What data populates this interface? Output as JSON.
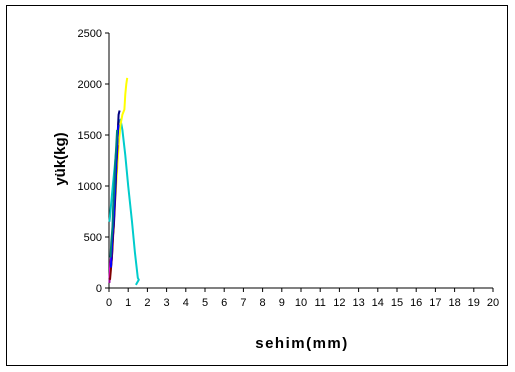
{
  "chart_data": {
    "type": "line",
    "title": "",
    "xlabel": "sehim(mm)",
    "ylabel": "yük(kg)",
    "xlim": [
      0,
      20
    ],
    "ylim": [
      0,
      2500
    ],
    "xticks": [
      "0",
      "1",
      "2",
      "3",
      "4",
      "5",
      "6",
      "7",
      "8",
      "9",
      "10",
      "11",
      "12",
      "13",
      "14",
      "15",
      "16",
      "17",
      "18",
      "19",
      "20"
    ],
    "yticks": [
      "0",
      "500",
      "1000",
      "1500",
      "2000",
      "2500"
    ],
    "grid": false,
    "legend": "none",
    "series": [
      {
        "color": "#00cccc",
        "x": [
          0.02,
          0.05,
          0.1,
          0.2,
          0.3,
          0.4,
          0.5,
          0.6,
          0.7,
          0.85,
          1.0,
          1.2,
          1.35,
          1.5,
          1.55,
          1.4
        ],
        "y": [
          650,
          700,
          800,
          1000,
          1200,
          1400,
          1620,
          1650,
          1550,
          1300,
          1000,
          650,
          350,
          100,
          80,
          30
        ]
      },
      {
        "color": "#ffff00",
        "x": [
          0.1,
          0.2,
          0.3,
          0.4,
          0.5,
          0.6,
          0.7,
          0.8,
          0.85,
          0.9,
          0.95
        ],
        "y": [
          200,
          500,
          800,
          1100,
          1400,
          1600,
          1700,
          1750,
          1900,
          2000,
          2060
        ]
      },
      {
        "color": "#990099",
        "x": [
          0.02,
          0.05,
          0.1,
          0.15,
          0.2,
          0.25,
          0.3,
          0.35,
          0.4,
          0.45,
          0.5
        ],
        "y": [
          50,
          150,
          280,
          350,
          500,
          700,
          900,
          1100,
          1300,
          1500,
          1650
        ]
      },
      {
        "color": "#000080",
        "x": [
          0.05,
          0.1,
          0.15,
          0.2,
          0.25,
          0.3,
          0.35,
          0.4,
          0.45,
          0.5,
          0.55
        ],
        "y": [
          250,
          200,
          300,
          500,
          600,
          800,
          1000,
          1300,
          1500,
          1700,
          1740
        ]
      },
      {
        "color": "#ff00ff",
        "x": [
          0.03,
          0.08,
          0.12,
          0.18,
          0.22,
          0.28,
          0.32,
          0.38,
          0.42
        ],
        "y": [
          100,
          250,
          350,
          500,
          700,
          900,
          1100,
          1300,
          1450
        ]
      },
      {
        "color": "#800000",
        "x": [
          0.05,
          0.1,
          0.15,
          0.2,
          0.25,
          0.3,
          0.35,
          0.4,
          0.45
        ],
        "y": [
          80,
          180,
          300,
          450,
          650,
          850,
          1050,
          1250,
          1400
        ]
      },
      {
        "color": "#0000ff",
        "x": [
          0.1,
          0.15,
          0.2,
          0.25,
          0.3,
          0.35,
          0.4,
          0.45,
          0.5
        ],
        "y": [
          200,
          400,
          550,
          700,
          900,
          1100,
          1300,
          1500,
          1600
        ]
      },
      {
        "color": "#008080",
        "x": [
          0.08,
          0.12,
          0.18,
          0.22,
          0.28,
          0.32,
          0.38,
          0.42
        ],
        "y": [
          300,
          450,
          600,
          800,
          1000,
          1200,
          1400,
          1550
        ]
      }
    ]
  }
}
